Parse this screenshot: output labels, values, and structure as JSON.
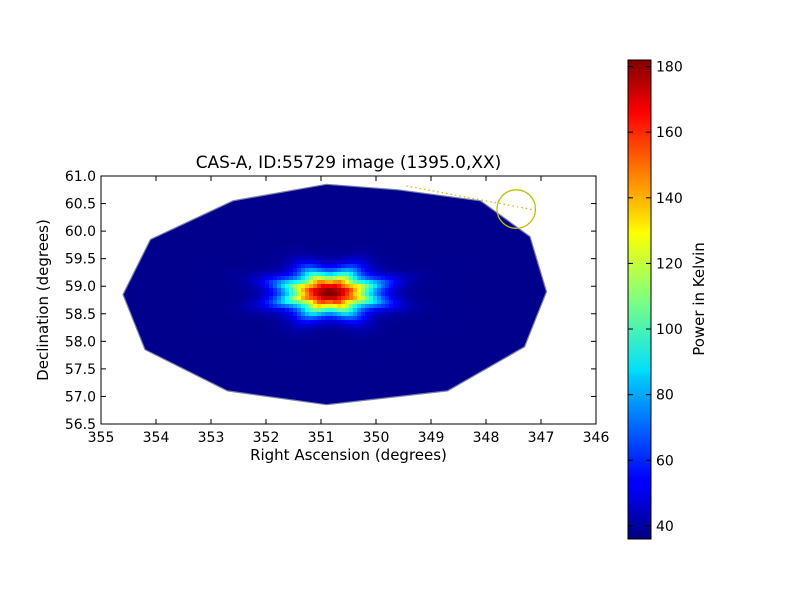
{
  "chart_data": {
    "type": "heatmap",
    "title": "CAS-A, ID:55729 image (1395.0,XX)",
    "xlabel": "Right Ascension (degrees)",
    "ylabel": "Declination (degrees)",
    "xlim": [
      355,
      346
    ],
    "ylim": [
      56.5,
      61.0
    ],
    "xticks": [
      "355",
      "354",
      "353",
      "352",
      "351",
      "350",
      "349",
      "348",
      "347",
      "346"
    ],
    "yticks": [
      "56.5",
      "57.0",
      "57.5",
      "58.0",
      "58.5",
      "59.0",
      "59.5",
      "60.0",
      "60.5",
      "61.0"
    ],
    "grid": false,
    "colormap": "jet",
    "colorbar": {
      "label": "Power in Kelvin",
      "range": [
        36,
        182
      ],
      "ticks": [
        "40",
        "60",
        "80",
        "100",
        "120",
        "140",
        "160",
        "180"
      ]
    },
    "field_boundary": [
      [
        350.9,
        60.85
      ],
      [
        349.6,
        60.75
      ],
      [
        348.1,
        60.55
      ],
      [
        347.2,
        59.9
      ],
      [
        346.9,
        58.9
      ],
      [
        347.3,
        57.9
      ],
      [
        348.7,
        57.1
      ],
      [
        350.9,
        56.85
      ],
      [
        352.7,
        57.1
      ],
      [
        354.2,
        57.85
      ],
      [
        354.6,
        58.85
      ],
      [
        354.1,
        59.85
      ],
      [
        352.6,
        60.55
      ]
    ],
    "background_level": 38,
    "sources": [
      {
        "ra": 350.85,
        "dec": 58.88,
        "peak": 182,
        "sigma_ra": 0.55,
        "sigma_dec": 0.25
      }
    ],
    "annotations": {
      "circle": {
        "ra": 347.45,
        "dec": 60.4,
        "radius_deg": 0.35,
        "color": "#bfbf00"
      },
      "dotted_line": {
        "from": [
          349.45,
          60.82
        ],
        "to": [
          347.1,
          60.38
        ],
        "color": "#bfbf00"
      }
    }
  }
}
